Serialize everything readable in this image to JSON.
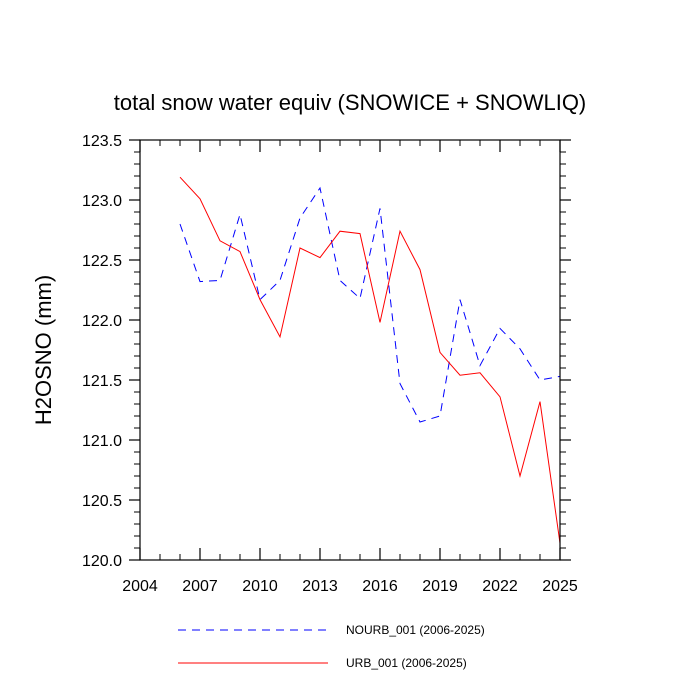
{
  "chart_data": {
    "type": "line",
    "title": "total snow water equiv (SNOWICE + SNOWLIQ)",
    "xlabel": "",
    "ylabel": "H2OSNO  (mm)",
    "xlim": [
      2004,
      2025
    ],
    "ylim": [
      120.0,
      123.5
    ],
    "x_ticks": [
      2004,
      2007,
      2010,
      2013,
      2016,
      2019,
      2022,
      2025
    ],
    "x_tick_labels": [
      "2004",
      "2007",
      "2010",
      "2013",
      "2016",
      "2019",
      "2022",
      "2025"
    ],
    "y_ticks": [
      120.0,
      120.5,
      121.0,
      121.5,
      122.0,
      122.5,
      123.0,
      123.5
    ],
    "y_tick_labels": [
      "120.0",
      "120.5",
      "121.0",
      "121.5",
      "122.0",
      "122.5",
      "123.0",
      "123.5"
    ],
    "grid": false,
    "legend_position": "bottom",
    "x": [
      2006,
      2007,
      2008,
      2009,
      2010,
      2011,
      2012,
      2013,
      2014,
      2015,
      2016,
      2017,
      2018,
      2019,
      2020,
      2021,
      2022,
      2023,
      2024,
      2025
    ],
    "series": [
      {
        "name": "NOURB_001 (2006-2025)",
        "color": "#0000ff",
        "dash": "dashed",
        "values": [
          122.8,
          122.32,
          122.33,
          122.88,
          122.17,
          122.33,
          122.85,
          123.1,
          122.33,
          122.18,
          122.93,
          121.47,
          121.15,
          121.2,
          122.17,
          121.62,
          121.93,
          121.76,
          121.5,
          121.53
        ]
      },
      {
        "name": "URB_001 (2006-2025)",
        "color": "#ff0000",
        "dash": "solid",
        "values": [
          123.19,
          123.01,
          122.66,
          122.57,
          122.17,
          121.86,
          122.6,
          122.52,
          122.74,
          122.72,
          121.98,
          122.74,
          122.42,
          121.73,
          121.54,
          121.56,
          121.36,
          120.7,
          121.32,
          120.14
        ]
      }
    ]
  }
}
